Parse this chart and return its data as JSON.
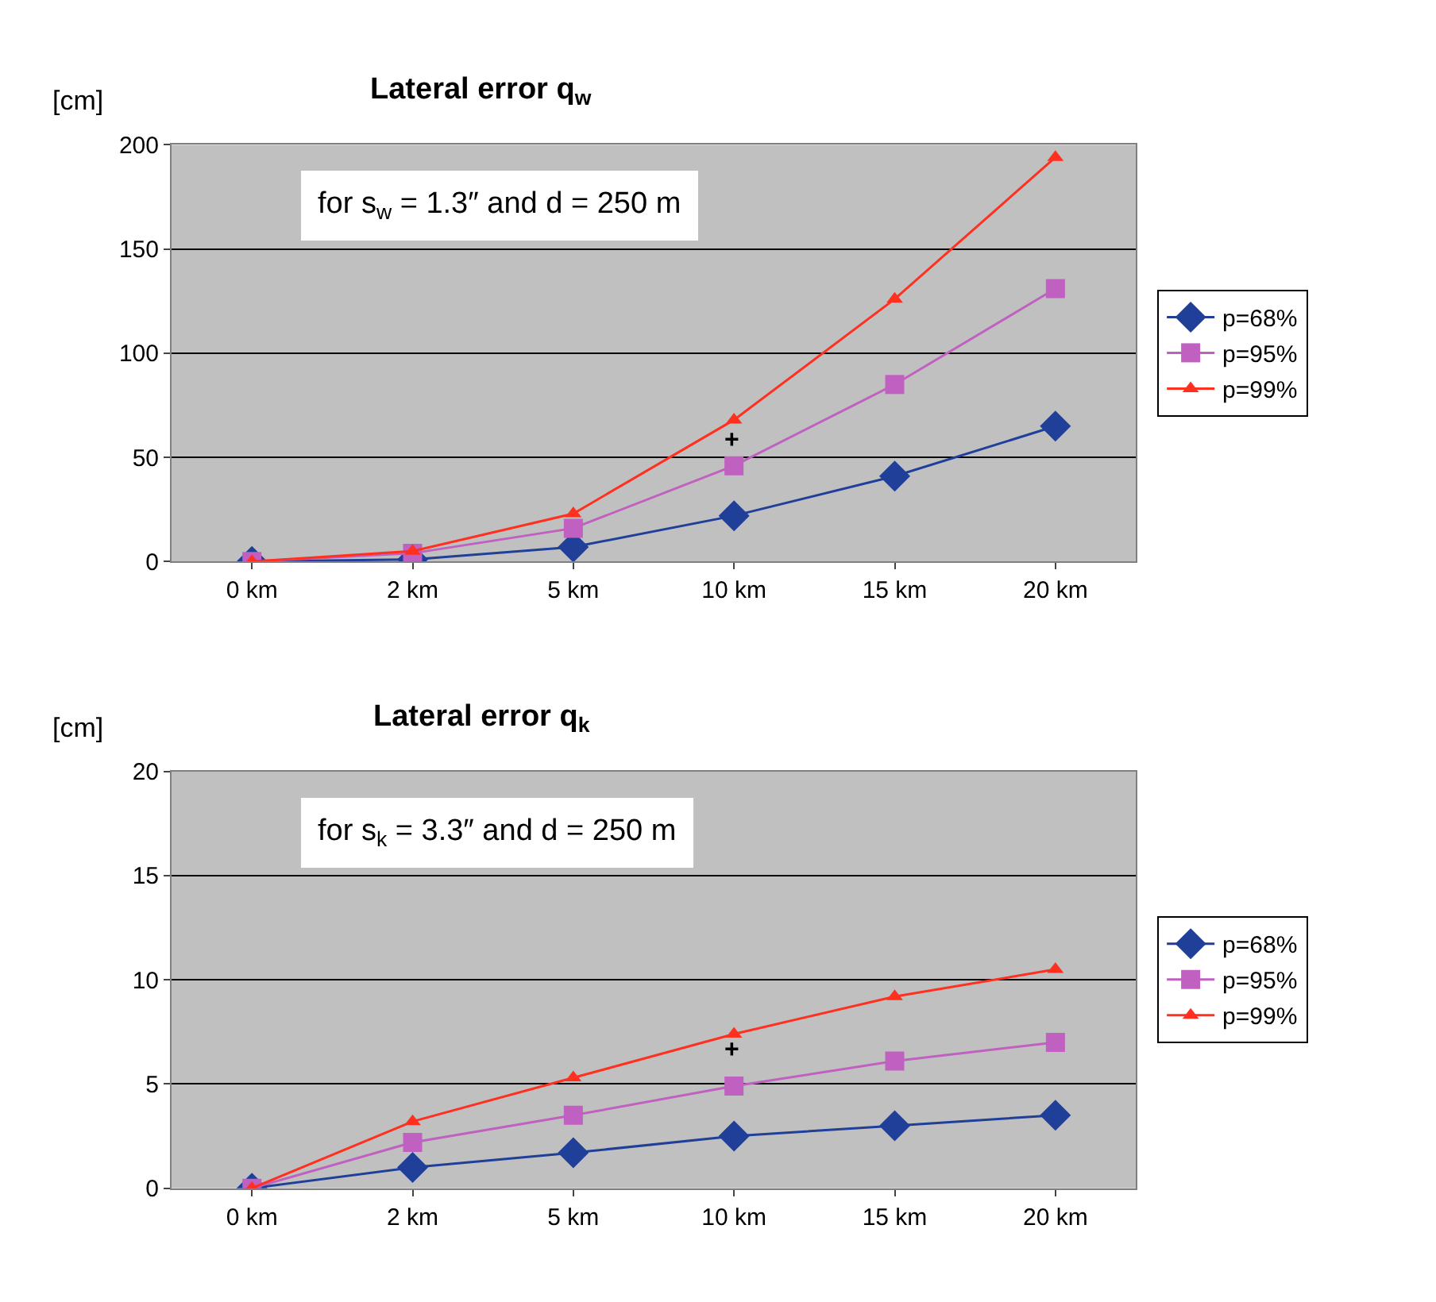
{
  "chart_data": [
    {
      "type": "line",
      "title": "Lateral error q$_{w}$",
      "ylabel": "[cm]",
      "categories": [
        "0 km",
        "2 km",
        "5 km",
        "10 km",
        "15 km",
        "20 km"
      ],
      "series": [
        {
          "name": "p=68%",
          "color": "#1f3f99",
          "marker": "diamond",
          "values": [
            0,
            1,
            7,
            22,
            41,
            65
          ]
        },
        {
          "name": "p=95%",
          "color": "#c060c0",
          "marker": "square",
          "values": [
            0,
            4,
            16,
            46,
            85,
            131
          ]
        },
        {
          "name": "p=99%",
          "color": "#ff3020",
          "marker": "triangle",
          "values": [
            0,
            5,
            23,
            68,
            126,
            194
          ]
        }
      ],
      "annotations": [
        "for s$_{w}$ = 1.3″ and d = 250 m",
        "+"
      ],
      "ylim": [
        0,
        200
      ],
      "yticks": [
        0,
        50,
        100,
        150,
        200
      ],
      "grid": "y",
      "legend": "right",
      "line_style": "solid"
    },
    {
      "type": "line",
      "title": "Lateral error q$_{k}$",
      "ylabel": "[cm]",
      "categories": [
        "0 km",
        "2 km",
        "5 km",
        "10 km",
        "15 km",
        "20 km"
      ],
      "series": [
        {
          "name": "p=68%",
          "color": "#1f3f99",
          "marker": "diamond",
          "values": [
            0,
            1.0,
            1.7,
            2.5,
            3.0,
            3.5
          ]
        },
        {
          "name": "p=95%",
          "color": "#c060c0",
          "marker": "square",
          "values": [
            0,
            2.2,
            3.5,
            4.9,
            6.1,
            7.0
          ]
        },
        {
          "name": "p=99%",
          "color": "#ff3020",
          "marker": "triangle",
          "values": [
            0,
            3.2,
            5.3,
            7.4,
            9.2,
            10.5
          ]
        }
      ],
      "annotations": [
        "for s$_{k}$ = 3.3″ and d = 250 m",
        "+"
      ],
      "ylim": [
        0,
        20
      ],
      "yticks": [
        0,
        5,
        10,
        15,
        20
      ],
      "grid": "y",
      "legend": "right",
      "line_style": "solid"
    }
  ]
}
